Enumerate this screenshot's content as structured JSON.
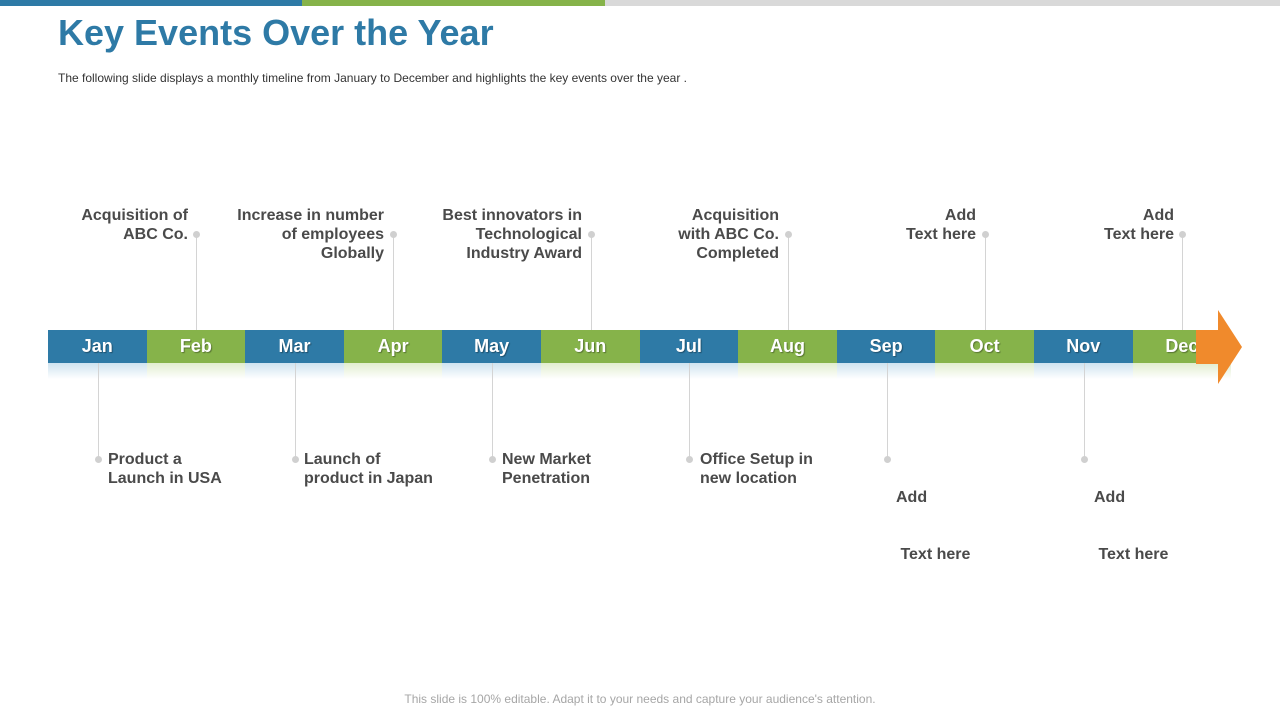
{
  "title": "Key Events Over the Year",
  "subtitle": "The following  slide displays a monthly timeline from January  to December  and highlights the key events over  the year .",
  "months": [
    "Jan",
    "Feb",
    "Mar",
    "Apr",
    "May",
    "Jun",
    "Jul",
    "Aug",
    "Sep",
    "Oct",
    "Nov",
    "Dec"
  ],
  "events_top": [
    {
      "month": "Feb",
      "lines": [
        "Acquisition  of",
        "ABC Co."
      ]
    },
    {
      "month": "Apr",
      "lines": [
        "Increase in number",
        "of employees",
        "Globally"
      ]
    },
    {
      "month": "Jun",
      "lines": [
        "Best innovators in",
        "Technological",
        "Industry Award"
      ]
    },
    {
      "month": "Aug",
      "lines": [
        "Acquisition",
        "with ABC Co.",
        "Completed"
      ]
    },
    {
      "month": "Oct",
      "lines": [
        "Add",
        "Text here"
      ]
    },
    {
      "month": "Dec",
      "lines": [
        "Add",
        "Text here"
      ]
    }
  ],
  "events_bottom": [
    {
      "month": "Jan",
      "lines": [
        "Product a",
        "Launch in USA"
      ]
    },
    {
      "month": "Mar",
      "lines": [
        "Launch of",
        "product in Japan"
      ]
    },
    {
      "month": "May",
      "lines": [
        "New Market",
        "Penetration"
      ]
    },
    {
      "month": "Jul",
      "lines": [
        "Office  Setup in",
        "new location"
      ]
    },
    {
      "month": "Sep",
      "lines": [
        "Add",
        " Text here"
      ]
    },
    {
      "month": "Nov",
      "lines": [
        "Add",
        " Text here"
      ]
    }
  ],
  "footer": "This slide is 100% editable. Adapt it to your needs and capture your audience's attention.",
  "colors": {
    "blue": "#2E7AA6",
    "green": "#86B34A",
    "arrow": "#F08A2C",
    "gray": "#D9D9D9"
  }
}
